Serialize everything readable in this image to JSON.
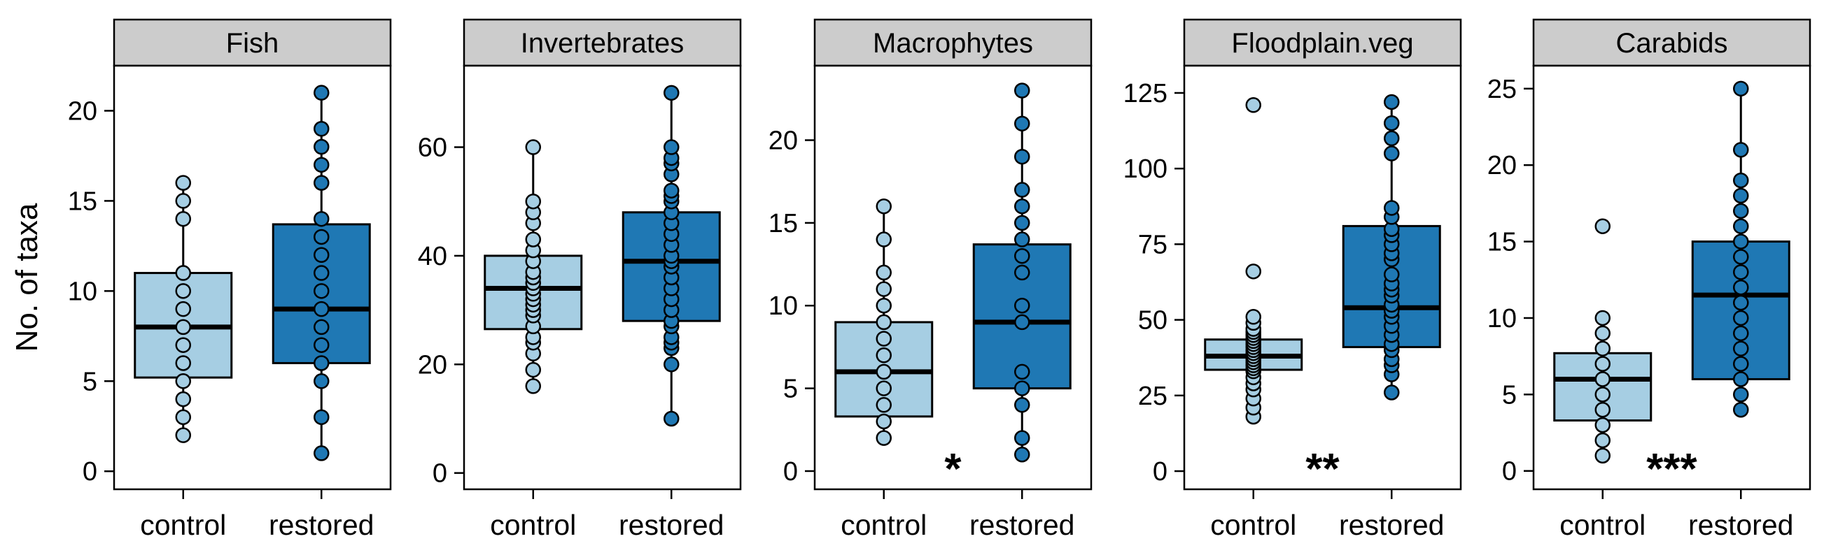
{
  "ylabel": "No. of taxa",
  "colors": {
    "control": "#a6cee3",
    "restored": "#1f78b4",
    "strip": "#cccccc"
  },
  "chart_data": [
    {
      "type": "box",
      "title": "Fish",
      "categories": [
        "control",
        "restored"
      ],
      "ylim": [
        -1,
        22.5
      ],
      "yticks": [
        0,
        5,
        10,
        15,
        20
      ],
      "significance": "",
      "boxes": [
        {
          "category": "control",
          "q1": 5.2,
          "median": 8,
          "q3": 11,
          "whisker_low": 2,
          "whisker_high": 16,
          "points": [
            2,
            3,
            4,
            5,
            6,
            7,
            8,
            9,
            10,
            11,
            14,
            15,
            16
          ]
        },
        {
          "category": "restored",
          "q1": 6,
          "median": 9,
          "q3": 13.7,
          "whisker_low": 1,
          "whisker_high": 21,
          "points": [
            1,
            3,
            5,
            6,
            7,
            8,
            9,
            10,
            11,
            12,
            13,
            14,
            16,
            17,
            18,
            19,
            21
          ]
        }
      ]
    },
    {
      "type": "box",
      "title": "Invertebrates",
      "categories": [
        "control",
        "restored"
      ],
      "ylim": [
        -3,
        75
      ],
      "yticks": [
        0,
        20,
        40,
        60
      ],
      "significance": "",
      "boxes": [
        {
          "category": "control",
          "q1": 26.5,
          "median": 34,
          "q3": 40,
          "whisker_low": 16,
          "whisker_high": 60,
          "points": [
            16,
            19,
            22,
            24,
            25,
            27,
            29,
            30,
            31,
            32,
            33,
            34,
            35,
            36,
            37,
            39,
            41,
            43,
            46,
            48,
            50,
            60
          ]
        },
        {
          "category": "restored",
          "q1": 28,
          "median": 39,
          "q3": 48,
          "whisker_low": 10,
          "whisker_high": 70,
          "points": [
            10,
            20,
            23,
            24,
            25,
            27,
            28,
            30,
            32,
            34,
            36,
            38,
            39,
            40,
            42,
            44,
            46,
            48,
            50,
            51,
            52,
            55,
            57,
            58,
            60,
            70
          ]
        }
      ]
    },
    {
      "type": "box",
      "title": "Macrophytes",
      "categories": [
        "control",
        "restored"
      ],
      "ylim": [
        -1.1,
        24.5
      ],
      "yticks": [
        0,
        5,
        10,
        15,
        20
      ],
      "significance": "*",
      "boxes": [
        {
          "category": "control",
          "q1": 3.3,
          "median": 6,
          "q3": 9,
          "whisker_low": 2,
          "whisker_high": 16,
          "points": [
            2,
            3,
            4,
            5,
            6,
            7,
            8,
            9,
            10,
            11,
            12,
            14,
            16
          ]
        },
        {
          "category": "restored",
          "q1": 5,
          "median": 9,
          "q3": 13.7,
          "whisker_low": 1,
          "whisker_high": 23,
          "points": [
            1,
            2,
            4,
            5,
            6,
            9,
            10,
            12,
            13,
            14,
            15,
            16,
            17,
            19,
            21,
            23
          ]
        }
      ]
    },
    {
      "type": "box",
      "title": "Floodplain.veg",
      "categories": [
        "control",
        "restored"
      ],
      "ylim": [
        -6,
        134
      ],
      "yticks": [
        0,
        25,
        50,
        75,
        100,
        125
      ],
      "significance": "**",
      "boxes": [
        {
          "category": "control",
          "q1": 33.5,
          "median": 38,
          "q3": 43.5,
          "whisker_low": 18,
          "whisker_high": 51,
          "points": [
            18,
            21,
            24,
            27,
            29,
            31,
            33,
            34,
            35,
            36,
            37,
            38,
            39,
            40,
            41,
            42,
            43,
            44,
            45,
            46,
            47,
            49,
            51,
            66,
            121
          ]
        },
        {
          "category": "restored",
          "q1": 41,
          "median": 54,
          "q3": 81,
          "whisker_low": 26,
          "whisker_high": 122,
          "points": [
            26,
            32,
            35,
            37,
            40,
            42,
            45,
            48,
            51,
            53,
            55,
            58,
            60,
            62,
            65,
            70,
            72,
            75,
            78,
            80,
            84,
            87,
            105,
            110,
            115,
            122
          ]
        }
      ]
    },
    {
      "type": "box",
      "title": "Carabids",
      "categories": [
        "control",
        "restored"
      ],
      "ylim": [
        -1.2,
        26.5
      ],
      "yticks": [
        0,
        5,
        10,
        15,
        20,
        25
      ],
      "significance": "***",
      "boxes": [
        {
          "category": "control",
          "q1": 3.3,
          "median": 6,
          "q3": 7.7,
          "whisker_low": 1,
          "whisker_high": 10,
          "points": [
            1,
            2,
            3,
            4,
            5,
            6,
            7,
            8,
            9,
            10,
            16
          ]
        },
        {
          "category": "restored",
          "q1": 6,
          "median": 11.5,
          "q3": 15,
          "whisker_low": 4,
          "whisker_high": 25,
          "points": [
            4,
            5,
            6,
            7,
            8,
            9,
            10,
            11,
            12,
            13,
            14,
            15,
            16,
            17,
            18,
            19,
            21,
            25
          ]
        }
      ]
    }
  ]
}
